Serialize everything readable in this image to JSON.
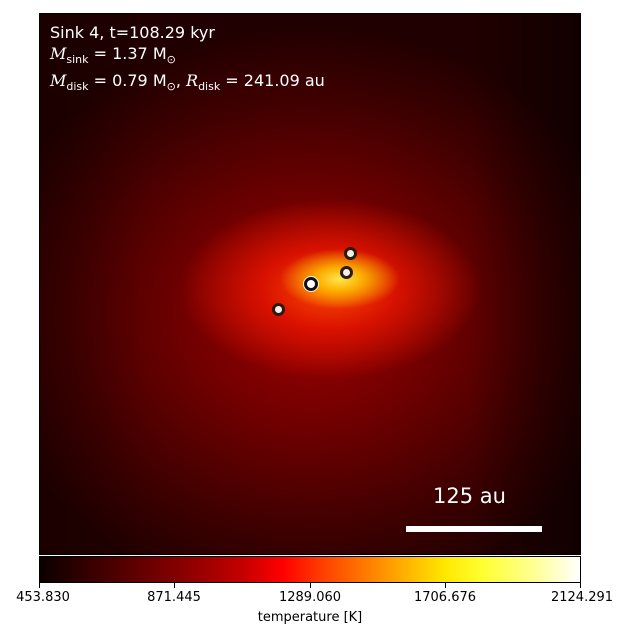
{
  "annotation": {
    "line1": "Sink 4, t=108.29 kyr",
    "msink_symbol": "M",
    "msink_sub": "sink",
    "msink_value": " = 1.37 M",
    "msink_unit_sub": "⊙",
    "mdisk_symbol": "M",
    "mdisk_sub": "disk",
    "mdisk_value": " = 0.79 M",
    "mdisk_unit_sub": "⊙",
    "rdisk_sep": ", ",
    "rdisk_symbol": "R",
    "rdisk_sub": "disk",
    "rdisk_value": " = 241.09 au"
  },
  "scale_bar": {
    "label": "125 au"
  },
  "colorbar": {
    "label": "temperature [K]",
    "ticks": [
      "453.830",
      "871.445",
      "1289.060",
      "1706.676",
      "2124.291"
    ],
    "colormap": "hot"
  },
  "sinks": [
    {
      "name": "sink-main",
      "type": "main"
    },
    {
      "name": "sink-companion-1",
      "type": "small"
    },
    {
      "name": "sink-companion-2",
      "type": "small"
    },
    {
      "name": "sink-companion-3",
      "type": "small"
    }
  ]
}
